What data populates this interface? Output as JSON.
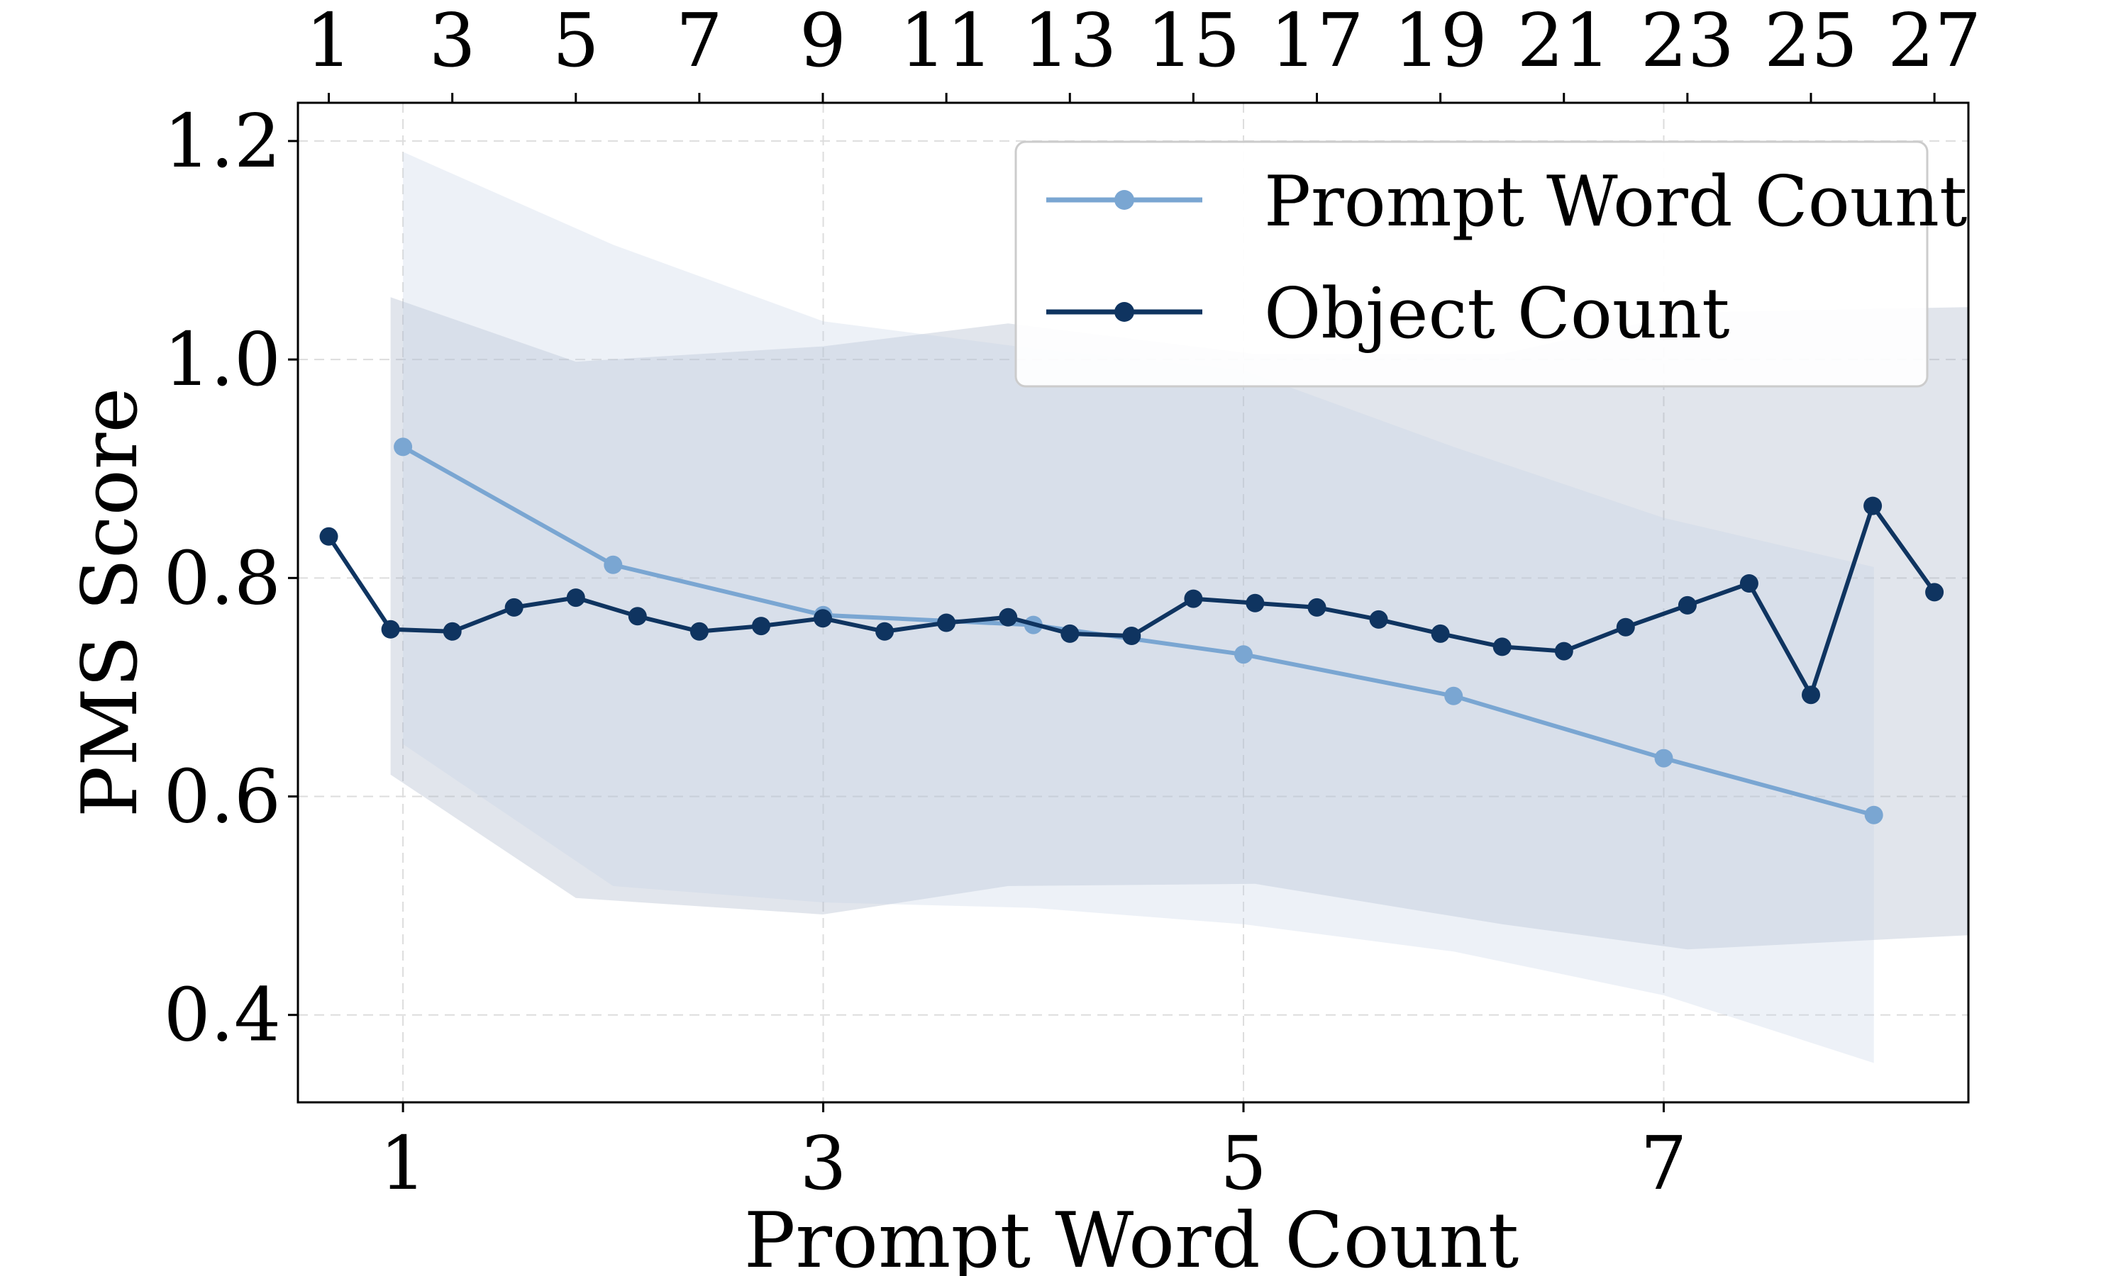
{
  "chart_data": {
    "type": "line",
    "xlabel": "Prompt Word Count",
    "ylabel": "PMS Score",
    "xlim": [
      0.5,
      8.45
    ],
    "ylim": [
      0.32,
      1.235
    ],
    "x_ticks": [
      1,
      3,
      5,
      7
    ],
    "y_ticks": [
      0.4,
      0.6,
      0.8,
      1.0,
      1.2
    ],
    "y_tick_labels": [
      "0.4",
      "0.6",
      "0.8",
      "1.0",
      "1.2"
    ],
    "top_axis": {
      "xlim": [
        0.5,
        27.55
      ],
      "ticks": [
        1,
        3,
        5,
        7,
        9,
        11,
        13,
        15,
        17,
        19,
        21,
        23,
        25,
        27
      ]
    },
    "grid": true,
    "legend": {
      "location": "upper right",
      "entries": [
        "Prompt Word Count",
        "Object Count"
      ]
    },
    "colors": {
      "prompt_word_count": "#7aa6d2",
      "object_count": "#0f3460",
      "prompt_band": "#c2cfe4",
      "object_band": "#a3aec3"
    },
    "series": [
      {
        "name": "Prompt Word Count",
        "axis": "bottom",
        "x": [
          1,
          2,
          3,
          4,
          5,
          6,
          7,
          8
        ],
        "y": [
          0.92,
          0.812,
          0.766,
          0.757,
          0.73,
          0.692,
          0.635,
          0.583
        ],
        "band_upper": [
          1.19,
          1.105,
          1.035,
          1.01,
          0.99,
          0.92,
          0.855,
          0.81
        ],
        "band_lower": [
          0.648,
          0.518,
          0.503,
          0.498,
          0.483,
          0.458,
          0.418,
          0.356
        ]
      },
      {
        "name": "Object Count",
        "axis": "top",
        "x": [
          1,
          2,
          3,
          4,
          5,
          6,
          7,
          8,
          9,
          10,
          11,
          12,
          13,
          14,
          15,
          16,
          17,
          18,
          19,
          20,
          21,
          22,
          23,
          24,
          25,
          26,
          27
        ],
        "y": [
          0.838,
          0.753,
          0.751,
          0.773,
          0.782,
          0.765,
          0.751,
          0.756,
          0.763,
          0.751,
          0.759,
          0.764,
          0.749,
          0.747,
          0.781,
          0.777,
          0.773,
          0.762,
          0.749,
          0.737,
          0.733,
          0.755,
          0.775,
          0.795,
          0.693,
          0.866,
          0.787
        ],
        "band_x": [
          2,
          5,
          9,
          12,
          16,
          20,
          23,
          27.55
        ],
        "band_upper": [
          1.057,
          0.998,
          1.012,
          1.033,
          1.005,
          1.005,
          1.043,
          1.048
        ],
        "band_lower": [
          0.62,
          0.507,
          0.492,
          0.518,
          0.52,
          0.483,
          0.46,
          0.473
        ]
      }
    ]
  }
}
